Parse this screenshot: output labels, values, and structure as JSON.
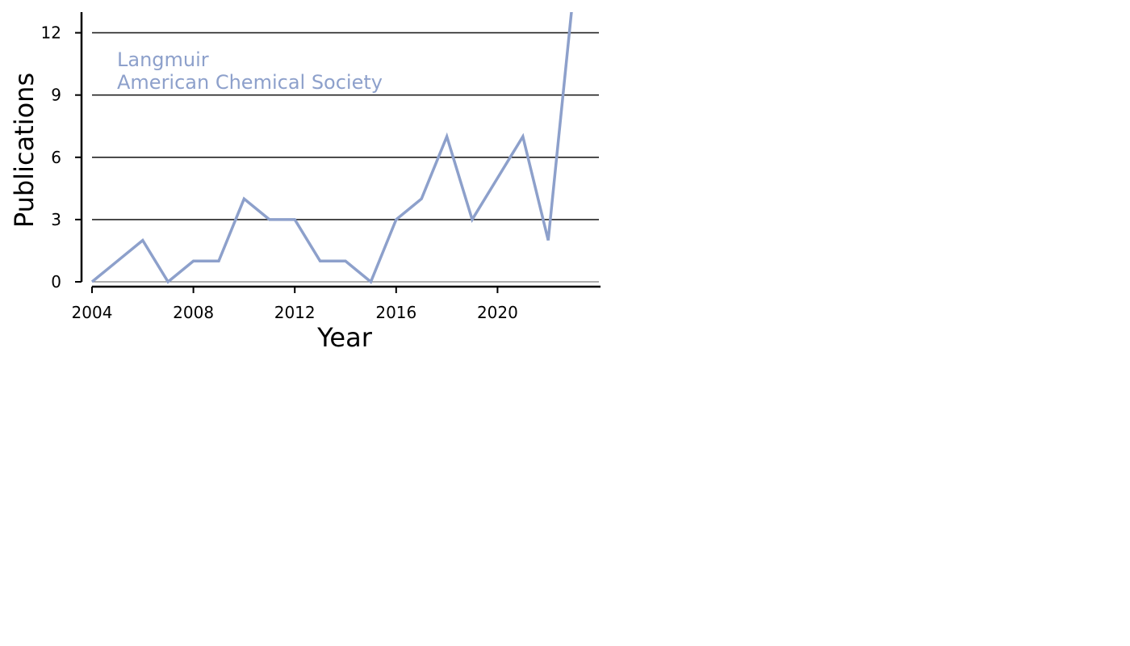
{
  "chart_data": {
    "type": "line",
    "title": "",
    "xlabel": "Year",
    "ylabel": "Publications",
    "x": [
      2004,
      2005,
      2006,
      2007,
      2008,
      2009,
      2010,
      2011,
      2012,
      2013,
      2014,
      2015,
      2016,
      2017,
      2018,
      2019,
      2020,
      2021,
      2022,
      2023
    ],
    "series": [
      {
        "values": [
          0,
          1,
          2,
          0,
          1,
          1,
          4,
          3,
          3,
          1,
          1,
          0,
          3,
          4,
          7,
          3,
          5,
          7,
          2,
          14
        ],
        "color": "#8da0cb"
      }
    ],
    "xlim": [
      2004,
      2024
    ],
    "ylim": [
      0,
      13
    ],
    "xticks": [
      2004,
      2008,
      2012,
      2016,
      2020
    ],
    "yticks": [
      0,
      3,
      6,
      9,
      12
    ],
    "grid": "horizontal",
    "annotation": {
      "lines": [
        "Langmuir",
        "American Chemical Society"
      ],
      "color": "#8da0cb"
    }
  }
}
